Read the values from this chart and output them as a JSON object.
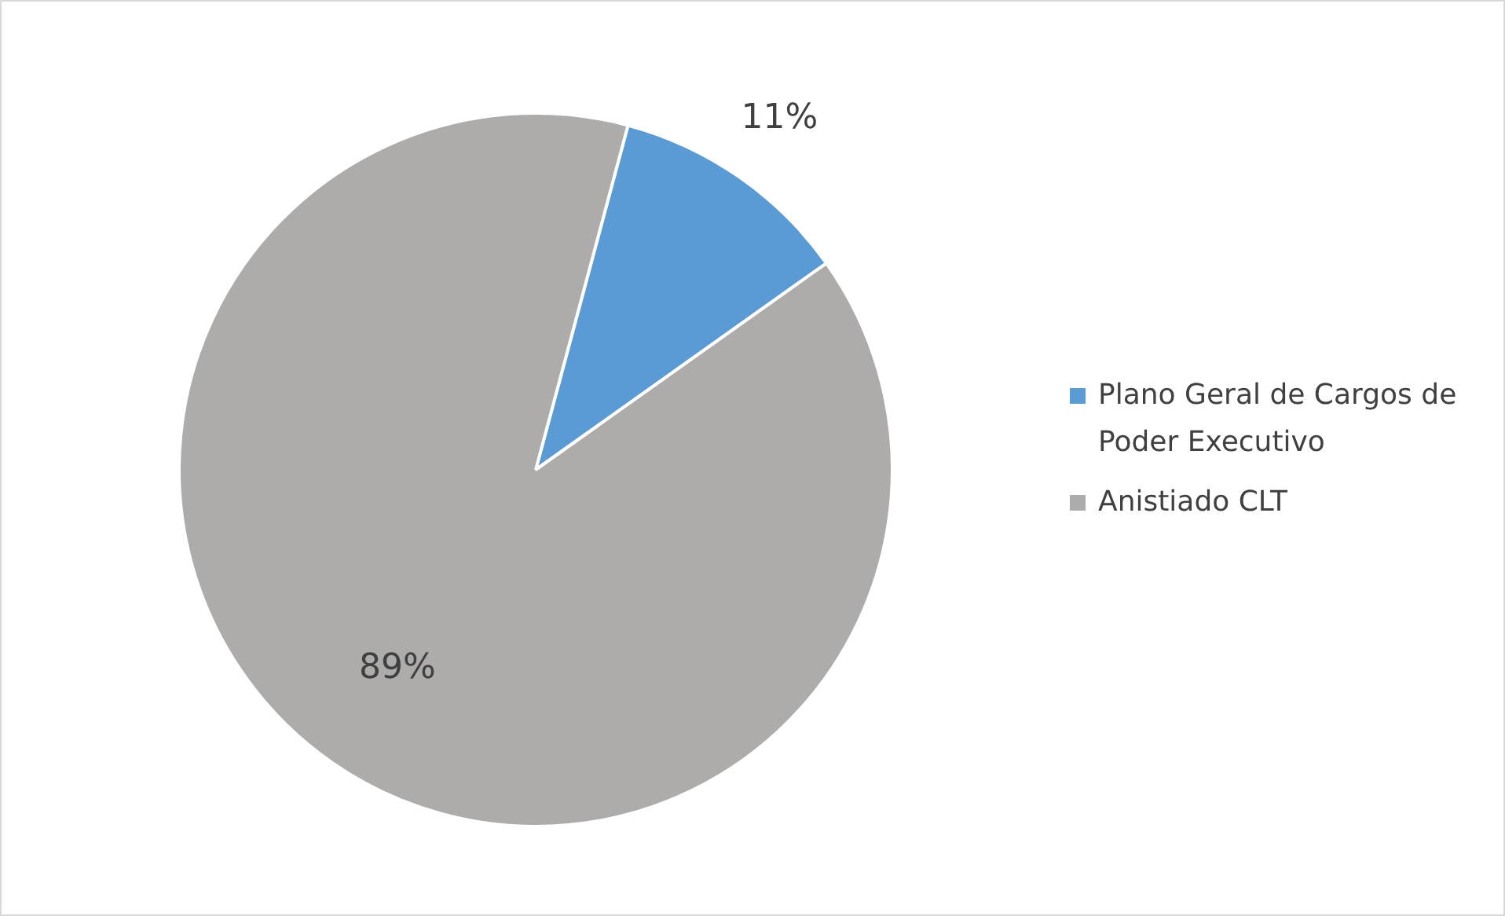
{
  "chart_data": {
    "type": "pie",
    "categories": [
      "Plano Geral de Cargos de Poder Executivo",
      "Anistiado CLT"
    ],
    "values": [
      11,
      89
    ],
    "value_labels": [
      "11%",
      "89%"
    ],
    "colors": [
      "#5b9bd5",
      "#aeabab"
    ],
    "legend": "right"
  }
}
